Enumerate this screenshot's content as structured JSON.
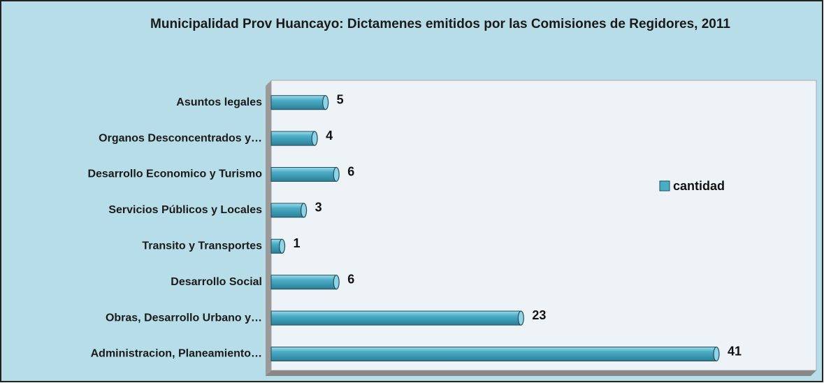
{
  "chart_data": {
    "type": "bar",
    "orientation": "horizontal",
    "title": "Municipalidad Prov Huancayo: Dictamenes emitidos por las Comisiones de Regidores, 2011",
    "categories": [
      "Asuntos legales",
      "Organos Desconcentrados y…",
      "Desarrollo Economico y Turismo",
      "Servicios Públicos y Locales",
      "Transito y Transportes",
      "Desarrollo Social",
      "Obras, Desarrollo Urbano y…",
      "Administracion, Planeamiento…"
    ],
    "series": [
      {
        "name": "cantidad",
        "color": "#4bacc6",
        "values": [
          5,
          4,
          6,
          3,
          1,
          6,
          23,
          41
        ]
      }
    ],
    "legend": "right"
  }
}
